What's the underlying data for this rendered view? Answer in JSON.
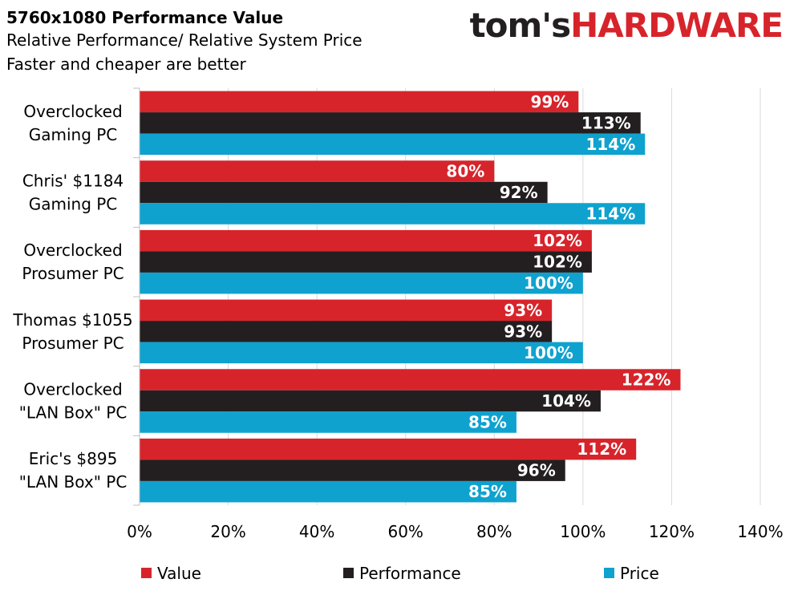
{
  "header": {
    "title": "5760x1080 Performance Value",
    "subtitle1": "Relative Performance/ Relative System Price",
    "subtitle2": "Faster and cheaper are better"
  },
  "logo": {
    "part1": "tom's",
    "part2": "HARDWARE"
  },
  "chart_data": {
    "type": "bar",
    "orientation": "horizontal",
    "title": "5760x1080 Performance Value",
    "subtitle": [
      "Relative Performance/ Relative System Price",
      "Faster and cheaper are better"
    ],
    "categories": [
      [
        "Overclocked",
        "Gaming PC"
      ],
      [
        "Chris' $1184",
        "Gaming PC"
      ],
      [
        "Overclocked",
        "Prosumer PC"
      ],
      [
        "Thomas $1055",
        "Prosumer PC"
      ],
      [
        "Overclocked",
        "\"LAN Box\" PC"
      ],
      [
        "Eric's $895",
        "\"LAN Box\" PC"
      ]
    ],
    "series": [
      {
        "name": "Value",
        "color": "#d7242b",
        "values": [
          99,
          80,
          102,
          93,
          122,
          112
        ]
      },
      {
        "name": "Performance",
        "color": "#231f20",
        "values": [
          113,
          92,
          102,
          93,
          104,
          96
        ]
      },
      {
        "name": "Price",
        "color": "#0fa2cf",
        "values": [
          114,
          114,
          100,
          100,
          85,
          85
        ]
      }
    ],
    "xlim": [
      0,
      140
    ],
    "xticks": [
      0,
      20,
      40,
      60,
      80,
      100,
      120,
      140
    ],
    "value_suffix": "%",
    "grid": true,
    "legend_position": "bottom",
    "xlabel": "",
    "ylabel": ""
  }
}
